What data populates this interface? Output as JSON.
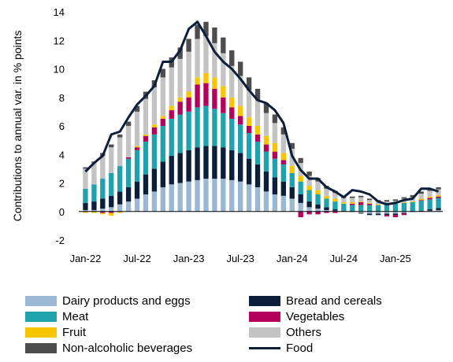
{
  "chart_data": {
    "type": "bar",
    "stacked": true,
    "ylabel": "Contributions to annual var. in % points",
    "ylim": [
      -2,
      14
    ],
    "yticks": [
      -2,
      0,
      2,
      4,
      6,
      8,
      10,
      12,
      14
    ],
    "x_tick_labels": [
      "Jan-22",
      "Jul-22",
      "Jan-23",
      "Jul-23",
      "Jan-24",
      "Jul-24",
      "Jan-25"
    ],
    "x_tick_indices": [
      0,
      6,
      12,
      18,
      24,
      30,
      36
    ],
    "grid": false,
    "legend_position": "bottom",
    "categories": [
      "2022-01",
      "2022-02",
      "2022-03",
      "2022-04",
      "2022-05",
      "2022-06",
      "2022-07",
      "2022-08",
      "2022-09",
      "2022-10",
      "2022-11",
      "2022-12",
      "2023-01",
      "2023-02",
      "2023-03",
      "2023-04",
      "2023-05",
      "2023-06",
      "2023-07",
      "2023-08",
      "2023-09",
      "2023-10",
      "2023-11",
      "2023-12",
      "2024-01",
      "2024-02",
      "2024-03",
      "2024-04",
      "2024-05",
      "2024-06",
      "2024-07",
      "2024-08",
      "2024-09",
      "2024-10",
      "2024-11",
      "2024-12",
      "2025-01",
      "2025-02",
      "2025-03",
      "2025-04",
      "2025-05",
      "2025-06"
    ],
    "series": [
      {
        "name": "Dairy products and eggs",
        "color": "#9ab8d3",
        "values": [
          0.1,
          0.1,
          0.2,
          0.3,
          0.5,
          0.7,
          0.9,
          1.2,
          1.4,
          1.7,
          1.9,
          2.0,
          2.1,
          2.2,
          2.3,
          2.3,
          2.3,
          2.2,
          2.1,
          1.9,
          1.7,
          1.4,
          1.2,
          1.1,
          0.9,
          0.6,
          0.3,
          0.2,
          0.1,
          0.05,
          0.0,
          -0.05,
          -0.1,
          -0.15,
          -0.15,
          -0.15,
          -0.15,
          -0.1,
          -0.05,
          0.0,
          0.05,
          0.1
        ]
      },
      {
        "name": "Bread and cereals",
        "color": "#0b1f3a",
        "values": [
          0.5,
          0.6,
          0.7,
          0.8,
          0.9,
          1.0,
          1.2,
          1.4,
          1.6,
          1.8,
          2.0,
          2.1,
          2.2,
          2.3,
          2.3,
          2.3,
          2.2,
          2.1,
          2.0,
          1.8,
          1.6,
          1.4,
          1.2,
          1.0,
          0.8,
          0.6,
          0.4,
          0.3,
          0.2,
          0.1,
          0.05,
          0.0,
          -0.05,
          -0.1,
          -0.1,
          -0.1,
          -0.1,
          -0.05,
          0.0,
          0.05,
          0.1,
          0.15
        ]
      },
      {
        "name": "Meat",
        "color": "#1ea2ad",
        "values": [
          1.0,
          1.2,
          1.4,
          1.6,
          1.8,
          2.0,
          2.2,
          2.3,
          2.4,
          2.5,
          2.6,
          2.7,
          2.7,
          2.8,
          2.8,
          2.6,
          2.4,
          2.2,
          2.0,
          1.8,
          1.6,
          1.4,
          1.3,
          1.2,
          1.0,
          0.9,
          0.8,
          0.7,
          0.6,
          0.55,
          0.5,
          0.45,
          0.45,
          0.45,
          0.45,
          0.5,
          0.55,
          0.6,
          0.65,
          0.7,
          0.7,
          0.7
        ]
      },
      {
        "name": "Vegetables",
        "color": "#b5005b",
        "values": [
          0.0,
          0.0,
          -0.1,
          -0.1,
          0.0,
          0.1,
          0.2,
          0.4,
          0.5,
          0.5,
          0.6,
          0.9,
          1.0,
          1.6,
          1.6,
          1.4,
          1.1,
          0.8,
          0.6,
          0.5,
          0.5,
          0.5,
          0.5,
          0.3,
          0.0,
          -0.4,
          -0.2,
          -0.2,
          -0.1,
          -0.1,
          0.0,
          0.1,
          0.2,
          0.1,
          0.0,
          -0.1,
          -0.15,
          -0.1,
          0.0,
          0.05,
          0.1,
          0.1
        ]
      },
      {
        "name": "Fruit",
        "color": "#f7c600",
        "values": [
          -0.1,
          -0.1,
          -0.1,
          -0.2,
          -0.1,
          0.0,
          0.1,
          0.1,
          0.2,
          0.2,
          0.3,
          0.3,
          0.4,
          0.5,
          0.7,
          0.8,
          0.8,
          0.7,
          0.7,
          0.6,
          0.6,
          0.6,
          0.6,
          0.5,
          0.5,
          0.4,
          0.3,
          0.3,
          0.2,
          0.2,
          0.1,
          0.1,
          0.05,
          0.05,
          0.05,
          0.0,
          0.0,
          0.05,
          0.05,
          0.1,
          0.1,
          0.1
        ]
      },
      {
        "name": "Others",
        "color": "#c3c3c3",
        "values": [
          1.4,
          1.5,
          1.6,
          1.8,
          2.0,
          2.2,
          2.4,
          2.5,
          2.6,
          2.7,
          2.7,
          2.7,
          2.8,
          2.7,
          2.6,
          2.4,
          2.3,
          2.2,
          2.1,
          1.9,
          1.8,
          1.6,
          1.4,
          1.3,
          1.2,
          0.9,
          0.7,
          0.6,
          0.5,
          0.4,
          0.3,
          0.3,
          0.3,
          0.2,
          0.2,
          0.2,
          0.2,
          0.25,
          0.3,
          0.35,
          0.4,
          0.4
        ]
      },
      {
        "name": "Non-alcoholic beverages",
        "color": "#4d4d4d",
        "values": [
          0.1,
          0.1,
          0.2,
          0.2,
          0.2,
          0.3,
          0.4,
          0.5,
          0.5,
          0.6,
          0.7,
          0.8,
          0.9,
          1.0,
          1.0,
          1.1,
          1.1,
          1.1,
          1.0,
          0.9,
          0.8,
          0.7,
          0.6,
          0.5,
          0.4,
          0.35,
          0.3,
          0.25,
          0.2,
          0.15,
          0.1,
          0.1,
          0.1,
          0.1,
          0.1,
          0.1,
          0.1,
          0.1,
          0.15,
          0.15,
          0.15,
          0.15
        ]
      }
    ],
    "line": {
      "name": "Food",
      "color": "#0b1f3a",
      "values": [
        2.8,
        3.4,
        3.9,
        5.4,
        5.6,
        6.6,
        7.5,
        8.1,
        8.8,
        10.5,
        10.5,
        11.3,
        12.8,
        13.3,
        12.3,
        11.2,
        10.5,
        10.0,
        9.3,
        8.5,
        7.8,
        7.6,
        7.1,
        6.2,
        3.9,
        2.9,
        2.3,
        2.3,
        1.7,
        1.4,
        1.0,
        1.5,
        1.4,
        1.2,
        0.7,
        0.5,
        0.6,
        0.8,
        0.9,
        1.6,
        1.6,
        1.4
      ]
    }
  }
}
